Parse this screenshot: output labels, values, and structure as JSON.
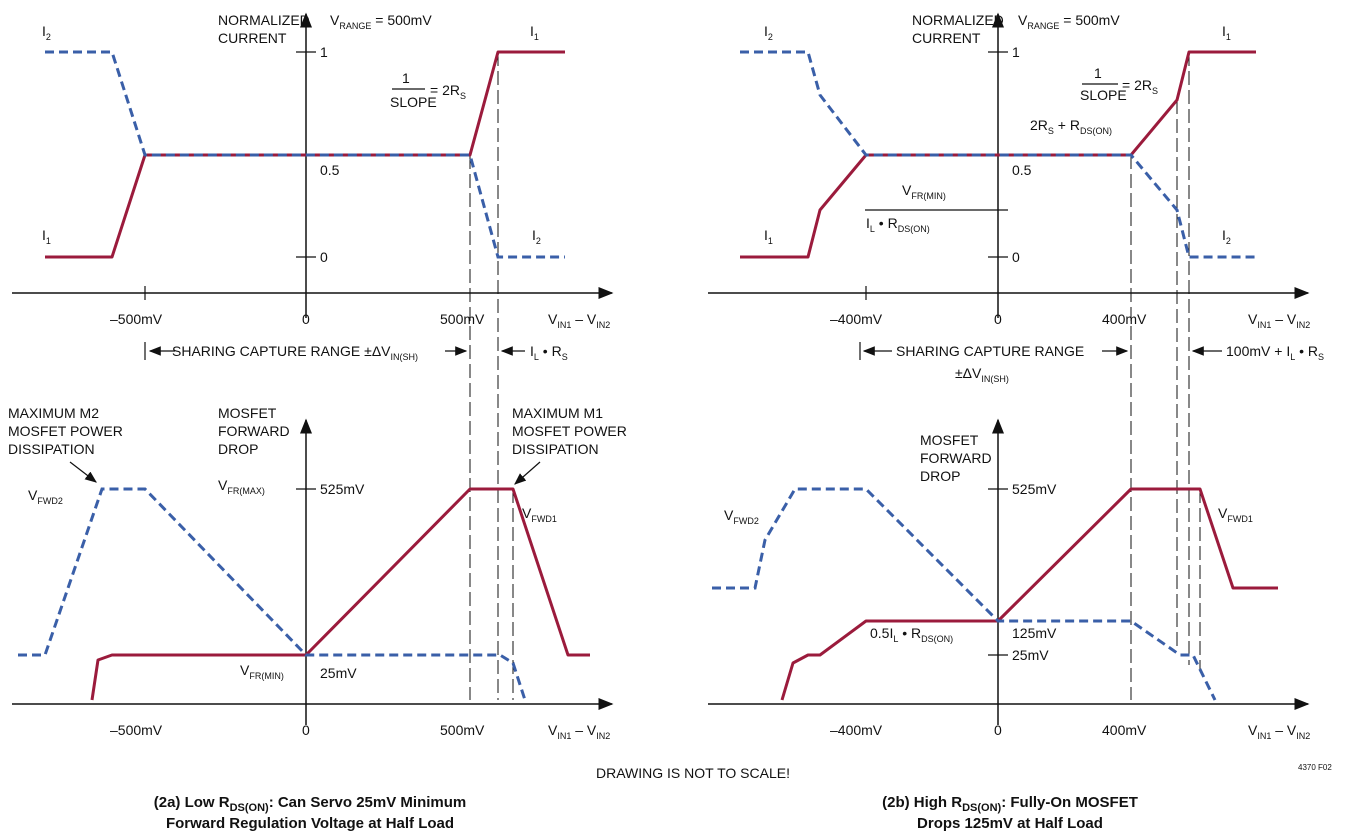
{
  "common": {
    "note": "DRAWING IS NOT TO SCALE!",
    "figure_id": "4370 F02",
    "current_axis_label": [
      "NORMALIZED",
      "CURRENT"
    ],
    "vrange": {
      "main": "V",
      "sub": "RANGE",
      "rest": " = 500mV"
    },
    "x_axis_label": {
      "v1": "V",
      "s1": "IN1",
      "mid": " – V",
      "s2": "IN2"
    },
    "mosfet_axis_label": [
      "MOSFET",
      "FORWARD",
      "DROP"
    ],
    "slope": {
      "num": "1",
      "den": "SLOPE",
      "rest": "= 2R",
      "sub": "S"
    },
    "i1": {
      "main": "I",
      "sub": "1"
    },
    "i2": {
      "main": "I",
      "sub": "2"
    },
    "tick_1": "1",
    "tick_05": "0.5",
    "tick_0": "0",
    "vfwd1": {
      "main": "V",
      "sub": "FWD1"
    },
    "vfwd2": {
      "main": "V",
      "sub": "FWD2"
    },
    "tick_525": "525mV"
  },
  "panel_a": {
    "x_ticks": [
      "–500mV",
      "0",
      "500mV"
    ],
    "sharing_range": {
      "text": "SHARING CAPTURE RANGE ±ΔV",
      "sub": "IN(SH)"
    },
    "il_rs": {
      "a": "I",
      "as": "L",
      "b": " • R",
      "bs": "S"
    },
    "max_m2": [
      "MAXIMUM M2",
      "MOSFET POWER",
      "DISSIPATION"
    ],
    "max_m1": [
      "MAXIMUM M1",
      "MOSFET POWER",
      "DISSIPATION"
    ],
    "vfr_max": {
      "main": "V",
      "sub": "FR(MAX)"
    },
    "vfr_min": {
      "main": "V",
      "sub": "FR(MIN)"
    },
    "tick_25": "25mV",
    "caption_line1": {
      "pre": "(2a) Low R",
      "sub": "DS(ON)",
      "post": ": Can Servo 25mV Minimum"
    },
    "caption_line2": "Forward Regulation Voltage at Half Load"
  },
  "panel_b": {
    "x_ticks": [
      "–400mV",
      "0",
      "400mV"
    ],
    "sharing_range": "SHARING CAPTURE RANGE",
    "sharing_range2": {
      "text": "±ΔV",
      "sub": "IN(SH)"
    },
    "offset_label": {
      "pre": "100mV + I",
      "s1": "L",
      "mid": " • R",
      "s2": "S"
    },
    "rs_rdson": {
      "pre": "2R",
      "s1": "S",
      "mid": " + R",
      "s2": "DS(ON)"
    },
    "vfr_frac_num": {
      "main": "V",
      "sub": "FR(MIN)"
    },
    "vfr_frac_den": {
      "a": "I",
      "as": "L",
      "b": " • R",
      "bs": "DS(ON)"
    },
    "half_il": {
      "a": "0.5I",
      "as": "L",
      "b": " • R",
      "bs": "DS(ON)"
    },
    "tick_125": "125mV",
    "tick_25": "25mV",
    "caption_line1": {
      "pre": "(2b) High R",
      "sub": "DS(ON)",
      "post": ": Fully-On MOSFET"
    },
    "caption_line2": "Drops 125mV at Half Load"
  }
}
